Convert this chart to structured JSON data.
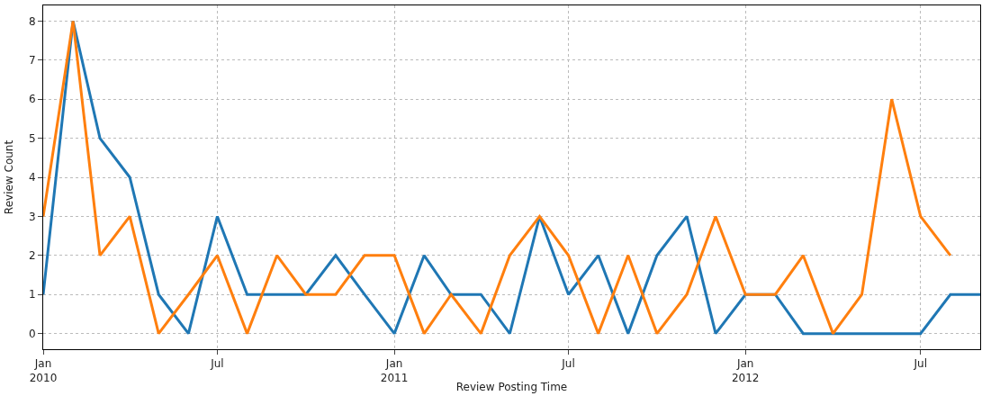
{
  "chart_data": {
    "type": "line",
    "xlabel": "Review Posting Time",
    "ylabel": "Review Count",
    "xlim": [
      "2010-01",
      "2012-09"
    ],
    "xticks": [
      {
        "value": "2010-01",
        "label": "Jan\n2010"
      },
      {
        "value": "2010-07",
        "label": "Jul"
      },
      {
        "value": "2011-01",
        "label": "Jan\n2011"
      },
      {
        "value": "2011-07",
        "label": "Jul"
      },
      {
        "value": "2012-01",
        "label": "Jan\n2012"
      },
      {
        "value": "2012-07",
        "label": "Jul"
      }
    ],
    "ylim": [
      -0.4,
      8.4
    ],
    "yticks": [
      0,
      1,
      2,
      3,
      4,
      5,
      6,
      7,
      8
    ],
    "grid": true,
    "line_style": "solid",
    "marker": "none",
    "series": [
      {
        "color": "#1f77b4",
        "x": [
          "2010-01",
          "2010-02",
          "2010-03",
          "2010-04",
          "2010-05",
          "2010-06",
          "2010-07",
          "2010-08",
          "2010-09",
          "2010-10",
          "2010-11",
          "2010-12",
          "2011-01",
          "2011-02",
          "2011-03",
          "2011-04",
          "2011-05",
          "2011-06",
          "2011-07",
          "2011-08",
          "2011-09",
          "2011-10",
          "2011-11",
          "2011-12",
          "2012-01",
          "2012-02",
          "2012-03",
          "2012-04",
          "2012-05",
          "2012-06",
          "2012-07",
          "2012-08",
          "2012-09"
        ],
        "values": [
          1,
          8,
          5,
          4,
          1,
          0,
          3,
          1,
          1,
          1,
          2,
          1,
          0,
          2,
          1,
          1,
          0,
          3,
          1,
          2,
          0,
          2,
          3,
          0,
          1,
          1,
          0,
          0,
          0,
          0,
          0,
          1,
          1
        ]
      },
      {
        "color": "#ff7f0e",
        "x": [
          "2010-01",
          "2010-02",
          "2010-03",
          "2010-04",
          "2010-05",
          "2010-06",
          "2010-07",
          "2010-08",
          "2010-09",
          "2010-10",
          "2010-11",
          "2010-12",
          "2011-01",
          "2011-02",
          "2011-03",
          "2011-04",
          "2011-05",
          "2011-06",
          "2011-07",
          "2011-08",
          "2011-09",
          "2011-10",
          "2011-11",
          "2011-12",
          "2012-01",
          "2012-02",
          "2012-03",
          "2012-04",
          "2012-05",
          "2012-06",
          "2012-07",
          "2012-08"
        ],
        "values": [
          3,
          8,
          2,
          3,
          0,
          1,
          2,
          0,
          2,
          1,
          1,
          2,
          2,
          0,
          1,
          0,
          2,
          3,
          2,
          0,
          2,
          0,
          1,
          3,
          1,
          1,
          2,
          0,
          1,
          6,
          3,
          2
        ]
      }
    ]
  }
}
